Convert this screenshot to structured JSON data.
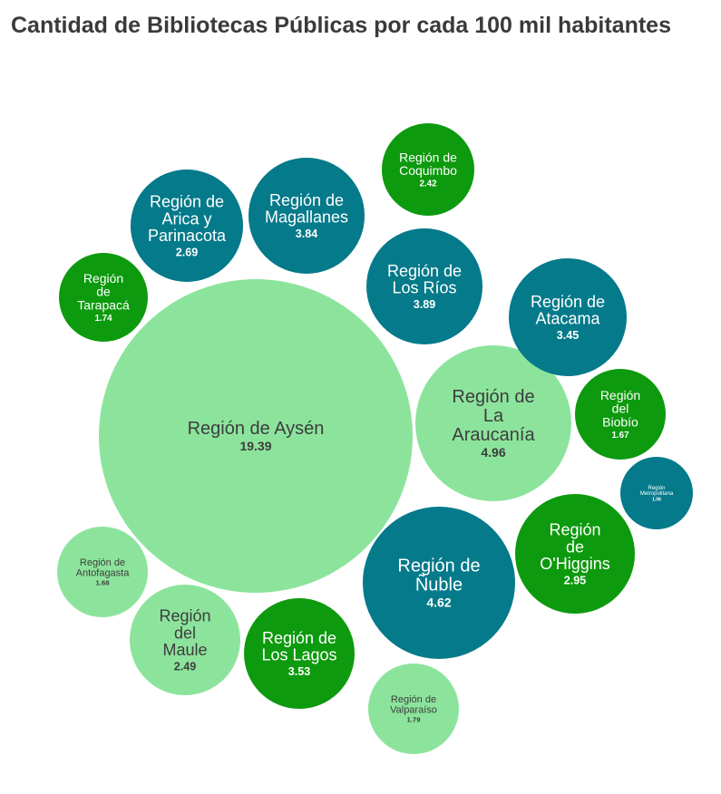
{
  "title": "Cantidad de Bibliotecas Públicas por cada 100 mil habitantes",
  "colors": {
    "teal": "#047a8a",
    "green": "#0d9a0e",
    "light_green": "#8ce49c",
    "dark_text": "#3d3d3d",
    "white_text": "#ffffff"
  },
  "chart_data": {
    "type": "bubble",
    "title": "Cantidad de Bibliotecas Públicas por cada 100 mil habitantes",
    "bubbles": [
      {
        "name": "Región de Aysén",
        "lines": [
          "Región de Aysén"
        ],
        "value": 19.39,
        "value_label": "19.39",
        "color": "light_green"
      },
      {
        "name": "Región de La Araucanía",
        "lines": [
          "Región de",
          "La",
          "Araucanía"
        ],
        "value": 4.96,
        "value_label": "4.96",
        "color": "light_green"
      },
      {
        "name": "Región de Ñuble",
        "lines": [
          "Región de",
          "Ñuble"
        ],
        "value": 4.62,
        "value_label": "4.62",
        "color": "teal"
      },
      {
        "name": "Región de Los Ríos",
        "lines": [
          "Región de",
          "Los Ríos"
        ],
        "value": 3.89,
        "value_label": "3.89",
        "color": "teal"
      },
      {
        "name": "Región de Magallanes",
        "lines": [
          "Región de",
          "Magallanes"
        ],
        "value": 3.84,
        "value_label": "3.84",
        "color": "teal"
      },
      {
        "name": "Región de Los Lagos",
        "lines": [
          "Región de",
          "Los Lagos"
        ],
        "value": 3.53,
        "value_label": "3.53",
        "color": "green"
      },
      {
        "name": "Región de Atacama",
        "lines": [
          "Región de",
          "Atacama"
        ],
        "value": 3.45,
        "value_label": "3.45",
        "color": "teal"
      },
      {
        "name": "Región de O'Higgins",
        "lines": [
          "Región",
          "de",
          "O'Higgins"
        ],
        "value": 2.95,
        "value_label": "2.95",
        "color": "green"
      },
      {
        "name": "Región de Arica y Parinacota",
        "lines": [
          "Región de",
          "Arica y",
          "Parinacota"
        ],
        "value": 2.69,
        "value_label": "2.69",
        "color": "teal"
      },
      {
        "name": "Región del Maule",
        "lines": [
          "Región",
          "del",
          "Maule"
        ],
        "value": 2.49,
        "value_label": "2.49",
        "color": "light_green"
      },
      {
        "name": "Región de Coquimbo",
        "lines": [
          "Región de",
          "Coquimbo"
        ],
        "value": 2.42,
        "value_label": "2.42",
        "color": "green"
      },
      {
        "name": "Región de Valparaíso",
        "lines": [
          "Región de",
          "Valparaíso"
        ],
        "value": 1.79,
        "value_label": "1.79",
        "color": "light_green"
      },
      {
        "name": "Región de Tarapacá",
        "lines": [
          "Región",
          "de",
          "Tarapacá"
        ],
        "value": 1.74,
        "value_label": "1.74",
        "color": "green"
      },
      {
        "name": "Región de Antofagasta",
        "lines": [
          "Región de",
          "Antofagasta"
        ],
        "value": 1.68,
        "value_label": "1.68",
        "color": "light_green"
      },
      {
        "name": "Región del Biobío",
        "lines": [
          "Región",
          "del",
          "Biobío"
        ],
        "value": 1.67,
        "value_label": "1.67",
        "color": "green"
      },
      {
        "name": "Región Metropolitana",
        "lines": [
          "Región",
          "Metropolitana"
        ],
        "value": 1.06,
        "value_label": "1.06",
        "color": "teal"
      }
    ]
  }
}
